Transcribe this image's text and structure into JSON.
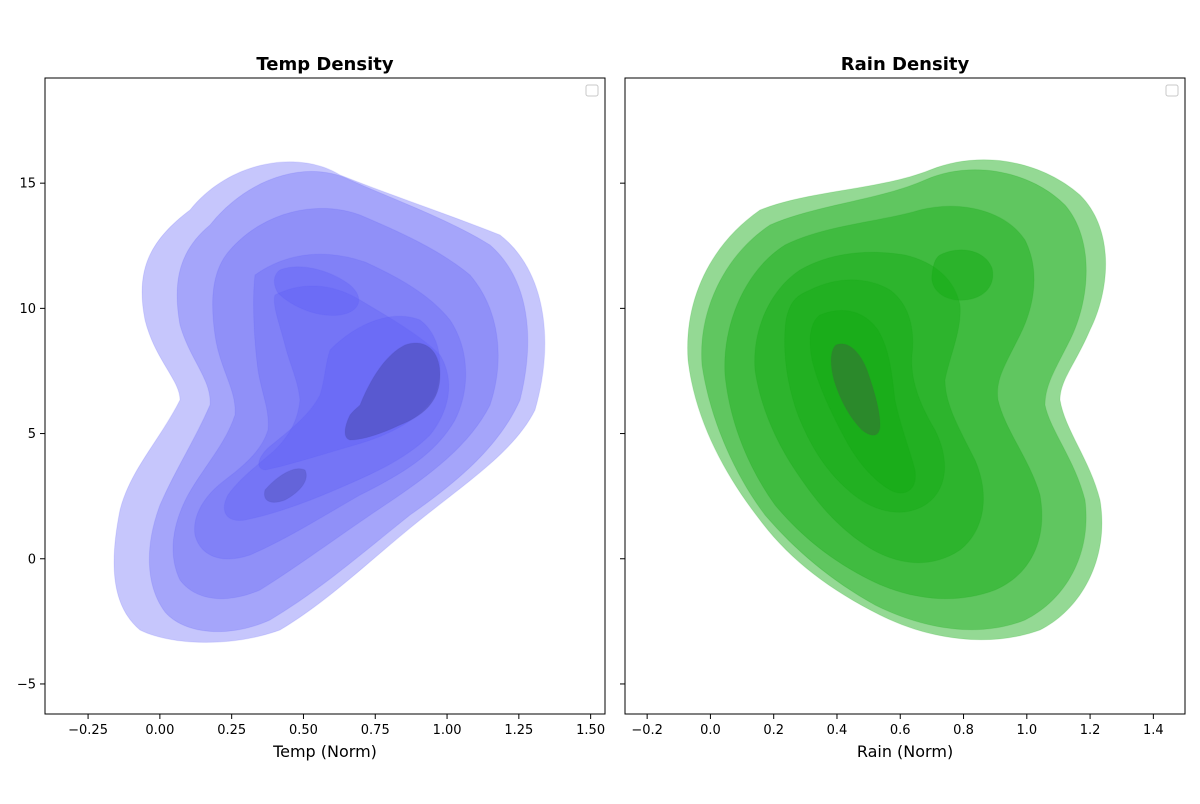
{
  "chart_data": [
    {
      "type": "kde-contour",
      "title": "Temp Density",
      "xlabel": "Temp (Norm)",
      "ylabel": "",
      "xlim": [
        -0.4,
        1.55
      ],
      "ylim": [
        -6.2,
        19.2
      ],
      "xticks": [
        "−0.25",
        "0.00",
        "0.25",
        "0.50",
        "0.75",
        "1.00",
        "1.25",
        "1.50"
      ],
      "xtick_values": [
        -0.25,
        0,
        0.25,
        0.5,
        0.75,
        1.0,
        1.25,
        1.5
      ],
      "yticks": [
        "−5",
        "0",
        "5",
        "10",
        "15"
      ],
      "ytick_values": [
        -5,
        0,
        5,
        10,
        15
      ],
      "color": "#5b5bf5",
      "legend": "top-right (empty)",
      "density_peaks": [
        {
          "x": 0.85,
          "y": 7.0,
          "weight": 1.0
        },
        {
          "x": 0.45,
          "y": 3.0,
          "weight": 0.75
        },
        {
          "x": 0.45,
          "y": 10.8,
          "weight": 0.55
        }
      ]
    },
    {
      "type": "kde-contour",
      "title": "Rain Density",
      "xlabel": "Rain (Norm)",
      "ylabel": "",
      "xlim": [
        -0.27,
        1.5
      ],
      "ylim": [
        -6.2,
        19.2
      ],
      "xticks": [
        "−0.2",
        "0.0",
        "0.2",
        "0.4",
        "0.6",
        "0.8",
        "1.0",
        "1.2",
        "1.4"
      ],
      "xtick_values": [
        -0.2,
        0,
        0.2,
        0.4,
        0.6,
        0.8,
        1.0,
        1.2,
        1.4
      ],
      "yticks": [
        "−5",
        "0",
        "5",
        "10",
        "15"
      ],
      "ytick_values": [
        -5,
        0,
        5,
        10,
        15
      ],
      "color": "#11aa11",
      "legend": "top-right (empty)",
      "density_peaks": [
        {
          "x": 0.45,
          "y": 6.8,
          "weight": 1.0
        },
        {
          "x": 0.85,
          "y": 2.0,
          "weight": 0.7
        },
        {
          "x": 0.8,
          "y": 11.2,
          "weight": 0.6
        }
      ]
    }
  ]
}
